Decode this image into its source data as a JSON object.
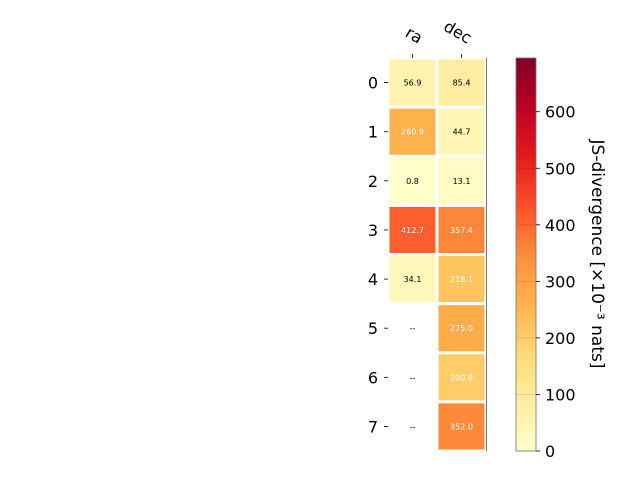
{
  "chart_data": {
    "type": "heatmap",
    "columns": [
      "ra",
      "dec"
    ],
    "rows": [
      "0",
      "1",
      "2",
      "3",
      "4",
      "5",
      "6",
      "7"
    ],
    "values": [
      [
        56.9,
        85.4
      ],
      [
        260.9,
        44.7
      ],
      [
        0.8,
        13.1
      ],
      [
        412.7,
        357.4
      ],
      [
        34.1,
        218.1
      ],
      [
        null,
        275.0
      ],
      [
        null,
        200.8
      ],
      [
        null,
        352.0
      ]
    ],
    "cell_labels": [
      [
        "56.9",
        "85.4"
      ],
      [
        "260.9",
        "44.7"
      ],
      [
        "0.8",
        "13.1"
      ],
      [
        "412.7",
        "357.4"
      ],
      [
        "34.1",
        "218.1"
      ],
      [
        "--",
        "275.0"
      ],
      [
        "--",
        "200.8"
      ],
      [
        "--",
        "352.0"
      ]
    ],
    "colorbar": {
      "label": "JS-divergence [×10⁻³ nats]",
      "ticks": [
        "0",
        "100",
        "200",
        "300",
        "400",
        "500",
        "600"
      ],
      "tick_values": [
        0,
        100,
        200,
        300,
        400,
        500,
        600
      ],
      "range": [
        0,
        695
      ],
      "colormap": "YlOrRd",
      "stops": [
        "#ffffcc",
        "#ffeda0",
        "#fed976",
        "#feb24c",
        "#fd8d3c",
        "#fc4e2a",
        "#e31a1c",
        "#bd0026",
        "#800026"
      ]
    },
    "grid": false
  }
}
